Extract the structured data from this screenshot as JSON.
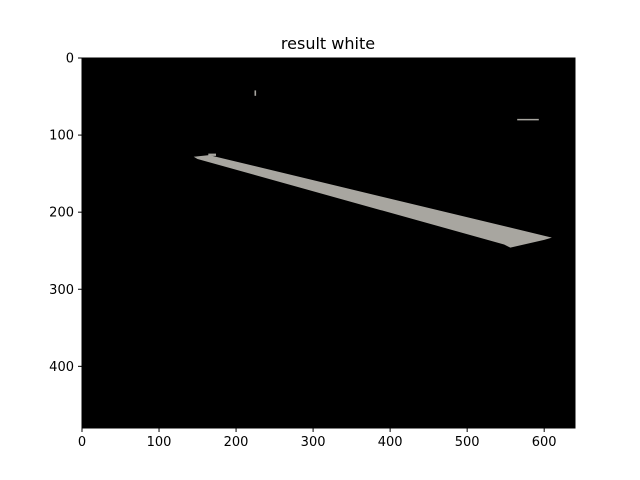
{
  "chart_data": {
    "type": "image",
    "title": "result white",
    "xlabel": "",
    "ylabel": "",
    "xlim": [
      0,
      640
    ],
    "ylim": [
      480,
      0
    ],
    "y_inverted": true,
    "x_ticks": [
      0,
      100,
      200,
      300,
      400,
      500,
      600
    ],
    "y_ticks": [
      0,
      100,
      200,
      300,
      400
    ],
    "grid": false,
    "background_color": "#000000",
    "foreground_color": "#a8a6a0",
    "regions": [
      {
        "name": "white-stripe",
        "polygon": [
          [
            145,
            128
          ],
          [
            165,
            126
          ],
          [
            610,
            233
          ],
          [
            600,
            236
          ],
          [
            556,
            246
          ],
          [
            548,
            242
          ],
          [
            150,
            131
          ]
        ]
      },
      {
        "name": "stripe-top-fragment",
        "polygon": [
          [
            164,
            124
          ],
          [
            174,
            124
          ],
          [
            174,
            127
          ],
          [
            164,
            127
          ]
        ]
      },
      {
        "name": "right-blob",
        "polygon": [
          [
            565,
            79
          ],
          [
            593,
            79
          ],
          [
            593,
            81
          ],
          [
            565,
            81
          ]
        ]
      },
      {
        "name": "left-speck",
        "polygon": [
          [
            224,
            42
          ],
          [
            226,
            42
          ],
          [
            226,
            49
          ],
          [
            224,
            49
          ]
        ]
      }
    ]
  }
}
